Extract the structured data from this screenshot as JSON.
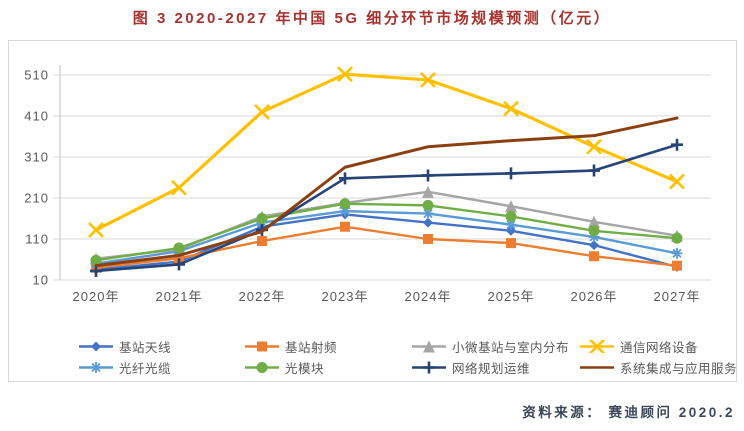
{
  "title": "图 3 2020-2027 年中国 5G 细分环节市场规模预测（亿元）",
  "source": "资料来源： 赛迪顾问  2020.2",
  "colors": {
    "title_red": "#a5322e",
    "gridline": "#d9d9d9",
    "axis": "#bfbfbf",
    "tick_text": "#595959",
    "source_text": "#3b4859"
  },
  "chart_data": {
    "type": "line",
    "title": "图 3 2020-2027 年中国 5G 细分环节市场规模预测（亿元）",
    "xlabel": "",
    "ylabel": "",
    "ylim": [
      10,
      510
    ],
    "yticks": [
      10,
      110,
      210,
      310,
      410,
      510
    ],
    "grid": true,
    "legend_position": "bottom",
    "categories": [
      "2020年",
      "2021年",
      "2022年",
      "2023年",
      "2024年",
      "2025年",
      "2026年",
      "2027年"
    ],
    "series": [
      {
        "name": "基站天线",
        "color": "#4472C4",
        "marker": "diamond",
        "values": [
          35,
          55,
          140,
          170,
          150,
          130,
          95,
          42
        ]
      },
      {
        "name": "基站射频",
        "color": "#ED7D31",
        "marker": "square",
        "values": [
          40,
          63,
          105,
          140,
          110,
          100,
          68,
          45
        ]
      },
      {
        "name": "小微基站与室内分布",
        "color": "#A5A5A5",
        "marker": "triangle",
        "values": [
          62,
          85,
          165,
          198,
          225,
          190,
          152,
          118
        ]
      },
      {
        "name": "通信网络设备",
        "color": "#FFC000",
        "marker": "x",
        "values": [
          132,
          235,
          420,
          512,
          498,
          428,
          335,
          250
        ]
      },
      {
        "name": "光纤光缆",
        "color": "#5B9BD5",
        "marker": "asterisk",
        "values": [
          50,
          80,
          150,
          178,
          172,
          145,
          115,
          75
        ]
      },
      {
        "name": "光模块",
        "color": "#70AD47",
        "marker": "circle",
        "values": [
          58,
          88,
          160,
          196,
          192,
          165,
          130,
          112
        ]
      },
      {
        "name": "网络规划运维",
        "color": "#264478",
        "marker": "plus",
        "values": [
          32,
          48,
          132,
          258,
          265,
          270,
          277,
          340
        ]
      },
      {
        "name": "系统集成与应用服务",
        "color": "#8A4012",
        "marker": "none",
        "values": [
          45,
          70,
          128,
          285,
          335,
          350,
          362,
          405
        ]
      }
    ]
  }
}
